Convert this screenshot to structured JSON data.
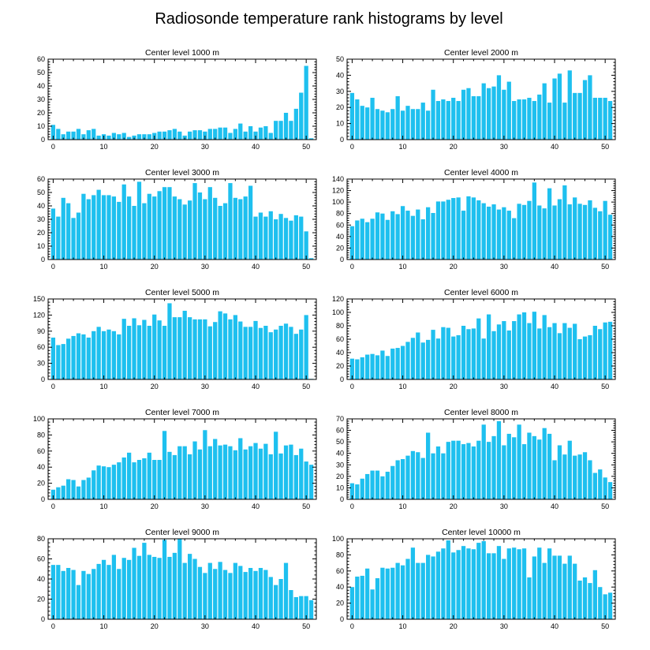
{
  "title": "Radiosonde temperature rank histograms by level",
  "colors": {
    "bar": "#1ec0ef",
    "axis": "#000000",
    "background": "#ffffff"
  },
  "chart_data": [
    {
      "type": "bar",
      "title": "Center level 1000 m",
      "x": [
        0,
        1,
        2,
        3,
        4,
        5,
        6,
        7,
        8,
        9,
        10,
        11,
        12,
        13,
        14,
        15,
        16,
        17,
        18,
        19,
        20,
        21,
        22,
        23,
        24,
        25,
        26,
        27,
        28,
        29,
        30,
        31,
        32,
        33,
        34,
        35,
        36,
        37,
        38,
        39,
        40,
        41,
        42,
        43,
        44,
        45,
        46,
        47,
        48,
        49,
        50,
        51
      ],
      "values": [
        11,
        8,
        4,
        6,
        6,
        8,
        4,
        7,
        8,
        3,
        4,
        3,
        5,
        4,
        5,
        2,
        3,
        4,
        4,
        4,
        5,
        6,
        6,
        7,
        8,
        6,
        3,
        6,
        7,
        7,
        6,
        8,
        8,
        9,
        9,
        5,
        8,
        12,
        6,
        10,
        6,
        9,
        10,
        5,
        14,
        14,
        20,
        14,
        23,
        35,
        55,
        1
      ],
      "xlim": [
        -1,
        52
      ],
      "ylim": [
        0,
        60
      ],
      "xticks": [
        0,
        10,
        20,
        30,
        40,
        50
      ],
      "yticks": [
        0,
        10,
        20,
        30,
        40,
        50,
        60
      ]
    },
    {
      "type": "bar",
      "title": "Center level 2000 m",
      "x": [
        0,
        1,
        2,
        3,
        4,
        5,
        6,
        7,
        8,
        9,
        10,
        11,
        12,
        13,
        14,
        15,
        16,
        17,
        18,
        19,
        20,
        21,
        22,
        23,
        24,
        25,
        26,
        27,
        28,
        29,
        30,
        31,
        32,
        33,
        34,
        35,
        36,
        37,
        38,
        39,
        40,
        41,
        42,
        43,
        44,
        45,
        46,
        47,
        48,
        49,
        50,
        51
      ],
      "values": [
        29,
        25,
        21,
        20,
        26,
        19,
        18,
        17,
        19,
        27,
        18,
        21,
        19,
        19,
        23,
        18,
        31,
        24,
        25,
        24,
        26,
        24,
        31,
        32,
        27,
        27,
        35,
        32,
        33,
        40,
        31,
        36,
        24,
        25,
        25,
        26,
        24,
        28,
        35,
        23,
        38,
        41,
        23,
        43,
        29,
        29,
        37,
        40,
        26,
        26,
        26,
        24
      ],
      "xlim": [
        -1,
        52
      ],
      "ylim": [
        0,
        50
      ],
      "xticks": [
        0,
        10,
        20,
        30,
        40,
        50
      ],
      "yticks": [
        0,
        10,
        20,
        30,
        40,
        50
      ]
    },
    {
      "type": "bar",
      "title": "Center level 3000 m",
      "x": [
        0,
        1,
        2,
        3,
        4,
        5,
        6,
        7,
        8,
        9,
        10,
        11,
        12,
        13,
        14,
        15,
        16,
        17,
        18,
        19,
        20,
        21,
        22,
        23,
        24,
        25,
        26,
        27,
        28,
        29,
        30,
        31,
        32,
        33,
        34,
        35,
        36,
        37,
        38,
        39,
        40,
        41,
        42,
        43,
        44,
        45,
        46,
        47,
        48,
        49,
        50,
        51
      ],
      "values": [
        38,
        32,
        46,
        42,
        31,
        35,
        49,
        45,
        48,
        52,
        48,
        48,
        47,
        43,
        56,
        47,
        40,
        58,
        42,
        49,
        47,
        51,
        54,
        54,
        47,
        45,
        41,
        44,
        57,
        50,
        45,
        54,
        46,
        40,
        42,
        57,
        46,
        45,
        47,
        55,
        32,
        35,
        32,
        36,
        30,
        34,
        31,
        29,
        33,
        32,
        21,
        1
      ],
      "xlim": [
        -1,
        52
      ],
      "ylim": [
        0,
        60
      ],
      "xticks": [
        0,
        10,
        20,
        30,
        40,
        50
      ],
      "yticks": [
        0,
        10,
        20,
        30,
        40,
        50,
        60
      ]
    },
    {
      "type": "bar",
      "title": "Center level 4000 m",
      "x": [
        0,
        1,
        2,
        3,
        4,
        5,
        6,
        7,
        8,
        9,
        10,
        11,
        12,
        13,
        14,
        15,
        16,
        17,
        18,
        19,
        20,
        21,
        22,
        23,
        24,
        25,
        26,
        27,
        28,
        29,
        30,
        31,
        32,
        33,
        34,
        35,
        36,
        37,
        38,
        39,
        40,
        41,
        42,
        43,
        44,
        45,
        46,
        47,
        48,
        49,
        50,
        51
      ],
      "values": [
        58,
        68,
        71,
        65,
        71,
        82,
        80,
        69,
        84,
        79,
        93,
        85,
        76,
        87,
        70,
        91,
        81,
        101,
        101,
        104,
        107,
        108,
        85,
        110,
        108,
        103,
        98,
        92,
        96,
        87,
        91,
        85,
        72,
        97,
        95,
        102,
        134,
        94,
        89,
        124,
        94,
        105,
        129,
        96,
        108,
        97,
        95,
        103,
        90,
        84,
        102,
        78
      ],
      "xlim": [
        -1,
        52
      ],
      "ylim": [
        0,
        140
      ],
      "xticks": [
        0,
        10,
        20,
        30,
        40,
        50
      ],
      "yticks": [
        0,
        20,
        40,
        60,
        80,
        100,
        120,
        140
      ]
    },
    {
      "type": "bar",
      "title": "Center level 5000 m",
      "x": [
        0,
        1,
        2,
        3,
        4,
        5,
        6,
        7,
        8,
        9,
        10,
        11,
        12,
        13,
        14,
        15,
        16,
        17,
        18,
        19,
        20,
        21,
        22,
        23,
        24,
        25,
        26,
        27,
        28,
        29,
        30,
        31,
        32,
        33,
        34,
        35,
        36,
        37,
        38,
        39,
        40,
        41,
        42,
        43,
        44,
        45,
        46,
        47,
        48,
        49,
        50,
        51
      ],
      "values": [
        78,
        64,
        66,
        76,
        81,
        86,
        84,
        78,
        90,
        98,
        90,
        93,
        90,
        84,
        113,
        100,
        114,
        101,
        111,
        100,
        121,
        110,
        100,
        142,
        116,
        116,
        128,
        116,
        112,
        112,
        112,
        99,
        107,
        127,
        123,
        112,
        120,
        108,
        98,
        98,
        109,
        96,
        100,
        88,
        93,
        100,
        104,
        98,
        85,
        93,
        120,
        1
      ],
      "xlim": [
        -1,
        52
      ],
      "ylim": [
        0,
        150
      ],
      "xticks": [
        0,
        10,
        20,
        30,
        40,
        50
      ],
      "yticks": [
        0,
        30,
        60,
        90,
        120,
        150
      ]
    },
    {
      "type": "bar",
      "title": "Center level 6000 m",
      "x": [
        0,
        1,
        2,
        3,
        4,
        5,
        6,
        7,
        8,
        9,
        10,
        11,
        12,
        13,
        14,
        15,
        16,
        17,
        18,
        19,
        20,
        21,
        22,
        23,
        24,
        25,
        26,
        27,
        28,
        29,
        30,
        31,
        32,
        33,
        34,
        35,
        36,
        37,
        38,
        39,
        40,
        41,
        42,
        43,
        44,
        45,
        46,
        47,
        48,
        49,
        50,
        51
      ],
      "values": [
        31,
        30,
        33,
        37,
        38,
        36,
        43,
        35,
        46,
        47,
        50,
        56,
        62,
        70,
        55,
        59,
        74,
        61,
        78,
        77,
        64,
        66,
        80,
        75,
        76,
        91,
        61,
        97,
        72,
        82,
        87,
        73,
        87,
        97,
        100,
        84,
        101,
        76,
        96,
        78,
        84,
        69,
        84,
        77,
        83,
        60,
        64,
        66,
        80,
        75,
        85,
        86
      ],
      "xlim": [
        -1,
        52
      ],
      "ylim": [
        0,
        120
      ],
      "xticks": [
        0,
        10,
        20,
        30,
        40,
        50
      ],
      "yticks": [
        0,
        20,
        40,
        60,
        80,
        100,
        120
      ]
    },
    {
      "type": "bar",
      "title": "Center level 7000 m",
      "x": [
        0,
        1,
        2,
        3,
        4,
        5,
        6,
        7,
        8,
        9,
        10,
        11,
        12,
        13,
        14,
        15,
        16,
        17,
        18,
        19,
        20,
        21,
        22,
        23,
        24,
        25,
        26,
        27,
        28,
        29,
        30,
        31,
        32,
        33,
        34,
        35,
        36,
        37,
        38,
        39,
        40,
        41,
        42,
        43,
        44,
        45,
        46,
        47,
        48,
        49,
        50,
        51
      ],
      "values": [
        12,
        15,
        17,
        25,
        24,
        16,
        24,
        27,
        36,
        42,
        41,
        40,
        43,
        46,
        52,
        58,
        46,
        49,
        51,
        58,
        49,
        49,
        85,
        59,
        55,
        66,
        66,
        56,
        72,
        62,
        86,
        66,
        75,
        67,
        68,
        66,
        61,
        76,
        62,
        66,
        70,
        63,
        69,
        56,
        84,
        57,
        67,
        68,
        55,
        63,
        47,
        43
      ],
      "xlim": [
        -1,
        52
      ],
      "ylim": [
        0,
        100
      ],
      "xticks": [
        0,
        10,
        20,
        30,
        40,
        50
      ],
      "yticks": [
        0,
        20,
        40,
        60,
        80,
        100
      ]
    },
    {
      "type": "bar",
      "title": "Center level 8000 m",
      "x": [
        0,
        1,
        2,
        3,
        4,
        5,
        6,
        7,
        8,
        9,
        10,
        11,
        12,
        13,
        14,
        15,
        16,
        17,
        18,
        19,
        20,
        21,
        22,
        23,
        24,
        25,
        26,
        27,
        28,
        29,
        30,
        31,
        32,
        33,
        34,
        35,
        36,
        37,
        38,
        39,
        40,
        41,
        42,
        43,
        44,
        45,
        46,
        47,
        48,
        49,
        50,
        51
      ],
      "values": [
        14,
        13,
        18,
        22,
        25,
        25,
        20,
        24,
        29,
        34,
        35,
        38,
        42,
        41,
        36,
        58,
        40,
        46,
        40,
        50,
        51,
        51,
        48,
        49,
        46,
        51,
        65,
        50,
        55,
        68,
        47,
        57,
        54,
        65,
        48,
        58,
        55,
        52,
        62,
        57,
        34,
        47,
        39,
        51,
        38,
        39,
        41,
        34,
        23,
        26,
        19,
        15
      ],
      "xlim": [
        -1,
        52
      ],
      "ylim": [
        0,
        70
      ],
      "xticks": [
        0,
        10,
        20,
        30,
        40,
        50
      ],
      "yticks": [
        0,
        10,
        20,
        30,
        40,
        50,
        60,
        70
      ]
    },
    {
      "type": "bar",
      "title": "Center level 9000 m",
      "x": [
        0,
        1,
        2,
        3,
        4,
        5,
        6,
        7,
        8,
        9,
        10,
        11,
        12,
        13,
        14,
        15,
        16,
        17,
        18,
        19,
        20,
        21,
        22,
        23,
        24,
        25,
        26,
        27,
        28,
        29,
        30,
        31,
        32,
        33,
        34,
        35,
        36,
        37,
        38,
        39,
        40,
        41,
        42,
        43,
        44,
        45,
        46,
        47,
        48,
        49,
        50,
        51
      ],
      "values": [
        54,
        54,
        48,
        51,
        49,
        34,
        48,
        45,
        50,
        55,
        59,
        54,
        64,
        50,
        61,
        59,
        71,
        63,
        76,
        64,
        62,
        61,
        79,
        62,
        66,
        80,
        56,
        65,
        60,
        52,
        46,
        56,
        50,
        57,
        49,
        46,
        56,
        53,
        47,
        51,
        48,
        51,
        49,
        42,
        34,
        40,
        56,
        29,
        22,
        23,
        23,
        19
      ],
      "xlim": [
        -1,
        52
      ],
      "ylim": [
        0,
        80
      ],
      "xticks": [
        0,
        10,
        20,
        30,
        40,
        50
      ],
      "yticks": [
        0,
        20,
        40,
        60,
        80
      ]
    },
    {
      "type": "bar",
      "title": "Center level 10000 m",
      "x": [
        0,
        1,
        2,
        3,
        4,
        5,
        6,
        7,
        8,
        9,
        10,
        11,
        12,
        13,
        14,
        15,
        16,
        17,
        18,
        19,
        20,
        21,
        22,
        23,
        24,
        25,
        26,
        27,
        28,
        29,
        30,
        31,
        32,
        33,
        34,
        35,
        36,
        37,
        38,
        39,
        40,
        41,
        42,
        43,
        44,
        45,
        46,
        47,
        48,
        49,
        50,
        51
      ],
      "values": [
        40,
        53,
        54,
        63,
        37,
        51,
        64,
        63,
        64,
        70,
        67,
        75,
        89,
        70,
        70,
        80,
        78,
        84,
        88,
        98,
        83,
        86,
        91,
        88,
        87,
        95,
        97,
        82,
        82,
        91,
        75,
        88,
        89,
        87,
        88,
        52,
        78,
        89,
        70,
        88,
        79,
        79,
        69,
        79,
        69,
        48,
        52,
        45,
        61,
        40,
        31,
        33
      ],
      "xlim": [
        -1,
        52
      ],
      "ylim": [
        0,
        100
      ],
      "xticks": [
        0,
        10,
        20,
        30,
        40,
        50
      ],
      "yticks": [
        0,
        20,
        40,
        60,
        80,
        100
      ]
    }
  ]
}
